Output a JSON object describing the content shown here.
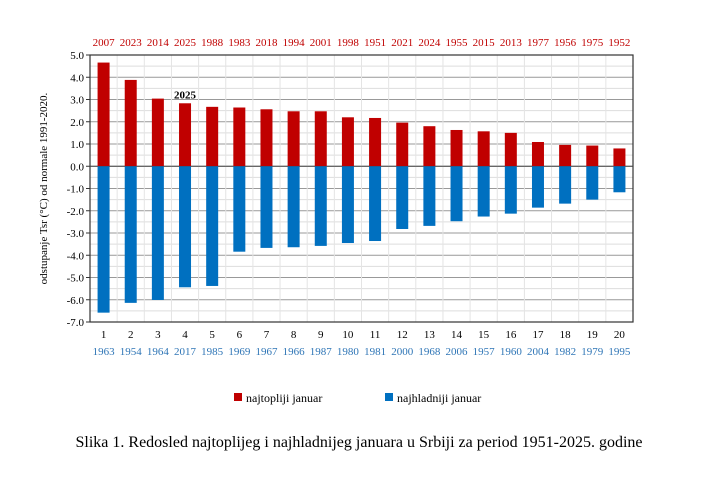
{
  "chart_data": {
    "type": "bar",
    "ylabel": "odstupanje Tsr (°C) od normale 1991-2020.",
    "ylim": [
      -7.0,
      5.0
    ],
    "yticks": [
      "5.0",
      "4.0",
      "3.0",
      "2.0",
      "1.0",
      "0.0",
      "-1.0",
      "-2.0",
      "-3.0",
      "-4.0",
      "-5.0",
      "-6.0",
      "-7.0"
    ],
    "grid": true,
    "legend_position": "bottom",
    "categories": [
      "1",
      "2",
      "3",
      "4",
      "5",
      "6",
      "7",
      "8",
      "9",
      "10",
      "11",
      "12",
      "13",
      "14",
      "15",
      "16",
      "17",
      "18",
      "19",
      "20"
    ],
    "warm_years": [
      "2007",
      "2023",
      "2014",
      "2025",
      "1988",
      "1983",
      "2018",
      "1994",
      "2001",
      "1998",
      "1951",
      "2021",
      "2024",
      "1955",
      "2015",
      "2013",
      "1977",
      "1956",
      "1975",
      "1952"
    ],
    "cold_years": [
      "1963",
      "1954",
      "1964",
      "2017",
      "1985",
      "1969",
      "1967",
      "1966",
      "1987",
      "1980",
      "1981",
      "2000",
      "1968",
      "2006",
      "1957",
      "1960",
      "2004",
      "1982",
      "1979",
      "1995"
    ],
    "series": [
      {
        "name": "najtopliji januar",
        "color": "#c00000",
        "values": [
          4.66,
          3.88,
          3.04,
          2.83,
          2.67,
          2.64,
          2.56,
          2.47,
          2.47,
          2.2,
          2.17,
          1.96,
          1.8,
          1.63,
          1.57,
          1.5,
          1.09,
          0.96,
          0.93,
          0.8
        ]
      },
      {
        "name": "najhladniji januar",
        "color": "#0070c0",
        "values": [
          -6.58,
          -6.14,
          -6.01,
          -5.44,
          -5.38,
          -3.84,
          -3.67,
          -3.64,
          -3.58,
          -3.45,
          -3.36,
          -2.82,
          -2.68,
          -2.47,
          -2.26,
          -2.13,
          -1.86,
          -1.68,
          -1.5,
          -1.17
        ]
      }
    ],
    "annotation": "2025",
    "warm_label_color": "#c00000",
    "cold_label_color": "#2e75b6"
  },
  "caption": "Slika 1. Redosled najtoplijeg i najhladnijeg januara u Srbiji za period 1951-2025. godine"
}
